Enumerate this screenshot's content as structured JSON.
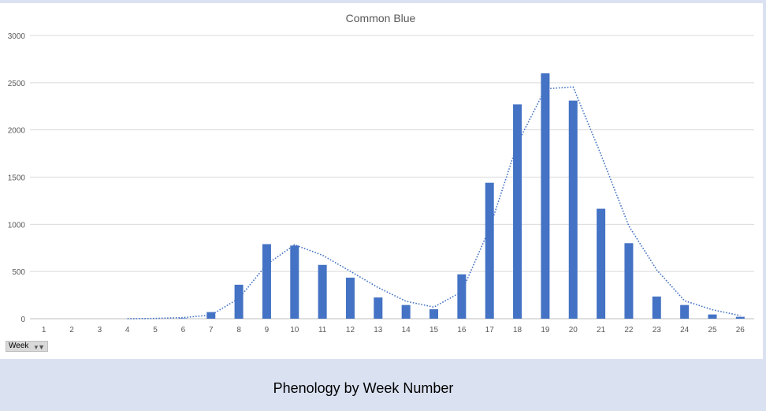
{
  "chart_data": {
    "type": "bar",
    "title": "Common Blue",
    "categories": [
      "1",
      "2",
      "3",
      "4",
      "5",
      "6",
      "7",
      "8",
      "9",
      "10",
      "11",
      "12",
      "13",
      "14",
      "15",
      "16",
      "17",
      "18",
      "19",
      "20",
      "21",
      "22",
      "23",
      "24",
      "25",
      "26"
    ],
    "series": [
      {
        "values": [
          0,
          0,
          0,
          0,
          0,
          5,
          70,
          360,
          790,
          775,
          570,
          435,
          225,
          145,
          100,
          470,
          1440,
          2270,
          2600,
          2310,
          1165,
          800,
          235,
          145,
          45,
          20
        ],
        "color": "#4472c4"
      }
    ],
    "trendline": {
      "type": "moving-average",
      "values": [
        null,
        null,
        null,
        0,
        3,
        12,
        38,
        215,
        575,
        783,
        673,
        503,
        330,
        185,
        123,
        285,
        955,
        1855,
        2435,
        2455,
        1738,
        983,
        518,
        190,
        95,
        33
      ],
      "color": "#4472c4",
      "style": "dotted"
    },
    "ylim": [
      0,
      3000
    ],
    "yticks": [
      0,
      500,
      1000,
      1500,
      2000,
      2500,
      3000
    ],
    "grid": true,
    "legend": "none",
    "xlabel": "",
    "ylabel": ""
  },
  "filter": {
    "label": "Week"
  },
  "caption": "Phenology by Week Number"
}
